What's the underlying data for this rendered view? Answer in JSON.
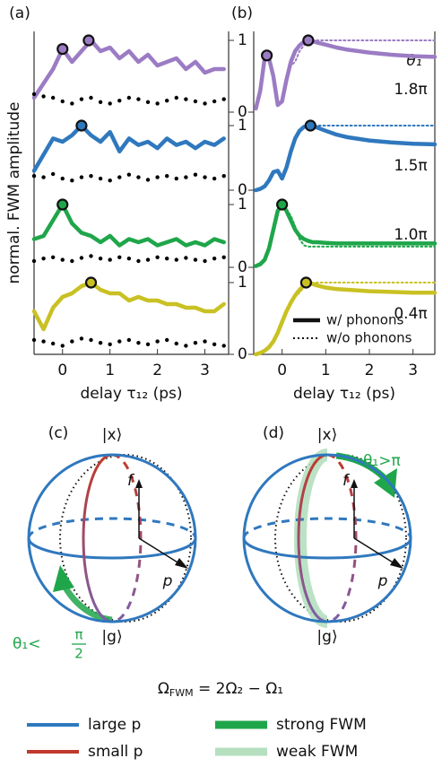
{
  "chart_data": [
    {
      "type": "line",
      "label": "(a)",
      "ylabel": "normal. FWM amplitude",
      "xlabel": "delay τ₁₂ (ps)",
      "xlim": [
        -0.6,
        3.5
      ],
      "xticks": [
        0,
        1,
        2,
        3
      ],
      "x": [
        -0.6,
        -0.4,
        -0.2,
        0,
        0.2,
        0.4,
        0.6,
        0.8,
        1.0,
        1.2,
        1.4,
        1.6,
        1.8,
        2.0,
        2.2,
        2.4,
        2.6,
        2.8,
        3.0,
        3.2,
        3.4
      ],
      "subplots": [
        {
          "ylim": [
            0,
            1
          ],
          "yticks": [
            0,
            1
          ],
          "series": [
            {
              "style": "solid",
              "color": "#9b7cc4",
              "values": [
                0.2,
                0.4,
                0.6,
                0.88,
                0.7,
                0.85,
                1.0,
                0.85,
                0.9,
                0.75,
                0.85,
                0.7,
                0.8,
                0.65,
                0.7,
                0.75,
                0.6,
                0.7,
                0.55,
                0.6,
                0.6
              ]
            },
            {
              "style": "dots",
              "color": "#000000",
              "values": [
                0.25,
                0.22,
                0.2,
                0.15,
                0.12,
                0.18,
                0.2,
                0.14,
                0.12,
                0.16,
                0.2,
                0.18,
                0.14,
                0.12,
                0.16,
                0.2,
                0.18,
                0.15,
                0.12,
                0.15,
                0.18
              ]
            }
          ],
          "markers": {
            "x": [
              0,
              0.55
            ],
            "values": [
              0.88,
              1.0
            ]
          }
        },
        {
          "ylim": [
            0,
            1
          ],
          "yticks": [
            0,
            1
          ],
          "series": [
            {
              "style": "solid",
              "color": "#2f78be",
              "values": [
                0.3,
                0.55,
                0.8,
                0.75,
                0.85,
                1.0,
                0.85,
                0.75,
                0.9,
                0.6,
                0.8,
                0.7,
                0.75,
                0.65,
                0.8,
                0.7,
                0.75,
                0.65,
                0.75,
                0.7,
                0.8
              ]
            },
            {
              "style": "dots",
              "color": "#000000",
              "values": [
                0.22,
                0.2,
                0.25,
                0.18,
                0.15,
                0.2,
                0.22,
                0.18,
                0.15,
                0.2,
                0.24,
                0.2,
                0.16,
                0.2,
                0.22,
                0.18,
                0.2,
                0.24,
                0.2,
                0.18,
                0.22
              ]
            }
          ],
          "markers": {
            "x": [
              0.4
            ],
            "values": [
              1.0
            ]
          }
        },
        {
          "ylim": [
            0,
            1
          ],
          "yticks": [
            0,
            1
          ],
          "series": [
            {
              "style": "solid",
              "color": "#1fa64a",
              "values": [
                0.45,
                0.5,
                0.75,
                1.0,
                0.7,
                0.55,
                0.5,
                0.4,
                0.5,
                0.35,
                0.45,
                0.4,
                0.45,
                0.35,
                0.4,
                0.45,
                0.35,
                0.4,
                0.35,
                0.45,
                0.4
              ]
            },
            {
              "style": "dots",
              "color": "#000000",
              "values": [
                0.1,
                0.14,
                0.16,
                0.12,
                0.1,
                0.15,
                0.18,
                0.14,
                0.12,
                0.16,
                0.14,
                0.1,
                0.12,
                0.16,
                0.14,
                0.12,
                0.15,
                0.12,
                0.1,
                0.14,
                0.16
              ]
            }
          ],
          "markers": {
            "x": [
              0
            ],
            "values": [
              1.0
            ]
          }
        },
        {
          "ylim": [
            0,
            1
          ],
          "yticks": [
            0,
            1
          ],
          "series": [
            {
              "style": "solid",
              "color": "#c9c123",
              "values": [
                0.6,
                0.35,
                0.65,
                0.8,
                0.85,
                0.95,
                1.0,
                0.9,
                0.85,
                0.85,
                0.75,
                0.8,
                0.75,
                0.75,
                0.7,
                0.7,
                0.65,
                0.65,
                0.6,
                0.6,
                0.7
              ]
            },
            {
              "style": "dots",
              "color": "#000000",
              "values": [
                0.2,
                0.18,
                0.15,
                0.12,
                0.18,
                0.22,
                0.2,
                0.16,
                0.14,
                0.18,
                0.2,
                0.16,
                0.14,
                0.18,
                0.2,
                0.15,
                0.12,
                0.16,
                0.18,
                0.14,
                0.12
              ]
            }
          ],
          "markers": {
            "x": [
              0.6
            ],
            "values": [
              1.0
            ]
          }
        }
      ]
    },
    {
      "type": "line",
      "label": "(b)",
      "xlabel": "delay τ₁₂ (ps)",
      "xlim": [
        -0.65,
        3.5
      ],
      "xticks": [
        0,
        1,
        2,
        3
      ],
      "x": [
        -0.6,
        -0.5,
        -0.4,
        -0.3,
        -0.2,
        -0.1,
        0,
        0.1,
        0.2,
        0.3,
        0.4,
        0.5,
        0.6,
        0.7,
        0.8,
        1.0,
        1.25,
        1.5,
        2,
        2.5,
        3,
        3.5
      ],
      "annotation_header": "θ₁",
      "legend": [
        {
          "name": "w/ phonons",
          "style": "solid"
        },
        {
          "name": "w/o phonons",
          "style": "dotted"
        }
      ],
      "subplots": [
        {
          "ylim": [
            0,
            1
          ],
          "annotation": "1.8π",
          "series": [
            {
              "style": "solid",
              "color": "#9b7cc4",
              "values": [
                0.05,
                0.3,
                0.75,
                0.75,
                0.5,
                0.1,
                0.15,
                0.45,
                0.7,
                0.85,
                0.93,
                0.98,
                1.0,
                0.99,
                0.97,
                0.94,
                0.9,
                0.87,
                0.83,
                0.8,
                0.78,
                0.77
              ]
            },
            {
              "style": "dotted",
              "color": "#9b7cc4",
              "values": [
                0.05,
                0.3,
                0.75,
                0.75,
                0.5,
                0.1,
                0.15,
                0.45,
                0.65,
                0.7,
                0.85,
                0.93,
                0.97,
                0.99,
                1.0,
                1.0,
                1.0,
                1.0,
                1.0,
                1.0,
                1.0,
                1.0
              ]
            }
          ],
          "markers": {
            "x": [
              -0.35,
              0.6
            ],
            "values": [
              0.79,
              1.0
            ]
          }
        },
        {
          "ylim": [
            0,
            1
          ],
          "annotation": "1.5π",
          "series": [
            {
              "style": "solid",
              "color": "#2f78be",
              "values": [
                0.0,
                0.02,
                0.06,
                0.15,
                0.28,
                0.3,
                0.18,
                0.35,
                0.6,
                0.8,
                0.92,
                0.98,
                1.0,
                0.99,
                0.97,
                0.92,
                0.86,
                0.82,
                0.77,
                0.74,
                0.72,
                0.71
              ]
            },
            {
              "style": "dotted",
              "color": "#2f78be",
              "values": [
                0.0,
                0.02,
                0.06,
                0.15,
                0.28,
                0.3,
                0.18,
                0.35,
                0.6,
                0.82,
                0.93,
                0.98,
                1.0,
                1.0,
                1.0,
                1.0,
                1.0,
                1.0,
                1.0,
                1.0,
                1.0,
                1.0
              ]
            }
          ],
          "markers": {
            "x": [
              0.65
            ],
            "values": [
              1.0
            ]
          }
        },
        {
          "ylim": [
            0,
            1
          ],
          "annotation": "1.0π",
          "series": [
            {
              "style": "solid",
              "color": "#1fa64a",
              "values": [
                0.02,
                0.05,
                0.12,
                0.3,
                0.6,
                0.9,
                1.0,
                0.9,
                0.75,
                0.6,
                0.5,
                0.45,
                0.42,
                0.4,
                0.4,
                0.39,
                0.38,
                0.38,
                0.38,
                0.38,
                0.38,
                0.38
              ]
            },
            {
              "style": "dotted",
              "color": "#1fa64a",
              "values": [
                0.02,
                0.05,
                0.12,
                0.3,
                0.6,
                0.9,
                1.0,
                0.92,
                0.82,
                0.65,
                0.45,
                0.35,
                0.33,
                0.33,
                0.33,
                0.33,
                0.33,
                0.33,
                0.33,
                0.33,
                0.33,
                0.33
              ]
            }
          ],
          "markers": {
            "x": [
              0
            ],
            "values": [
              1.0
            ]
          }
        },
        {
          "ylim": [
            0,
            1
          ],
          "annotation": "0.4π",
          "series": [
            {
              "style": "solid",
              "color": "#c9c123",
              "values": [
                0.0,
                0.02,
                0.05,
                0.1,
                0.18,
                0.3,
                0.45,
                0.6,
                0.72,
                0.82,
                0.9,
                0.96,
                1.0,
                0.98,
                0.96,
                0.93,
                0.91,
                0.9,
                0.88,
                0.87,
                0.86,
                0.86
              ]
            },
            {
              "style": "dotted",
              "color": "#c9c123",
              "values": [
                0.0,
                0.02,
                0.05,
                0.1,
                0.18,
                0.3,
                0.45,
                0.6,
                0.72,
                0.8,
                0.86,
                0.93,
                0.98,
                1.0,
                1.0,
                1.0,
                1.0,
                1.0,
                1.0,
                1.0,
                1.0,
                1.0
              ]
            }
          ],
          "markers": {
            "x": [
              0.55
            ],
            "values": [
              1.0
            ]
          }
        }
      ]
    }
  ],
  "diagrams": {
    "panels": [
      {
        "label": "(c)",
        "top_state": "|x⟩",
        "bottom_state": "|g⟩",
        "axis_f": "f",
        "axis_p": "p",
        "angle_label": {
          "text": "θ₁<",
          "numerator": "π",
          "denominator": "2"
        }
      },
      {
        "label": "(d)",
        "top_state": "|x⟩",
        "bottom_state": "|g⟩",
        "axis_f": "f",
        "axis_p": "p",
        "angle_label": {
          "text": "θ₁>π"
        }
      }
    ],
    "formula": {
      "symbol": "Ω",
      "subscript": "FWM",
      "rest": " = 2Ω₂ − Ω₁"
    },
    "legend": [
      {
        "name": "large p",
        "color": "#2f78be"
      },
      {
        "name": "small p",
        "color": "#c0392b"
      },
      {
        "name": "strong FWM",
        "color": "#1fa64a"
      },
      {
        "name": "weak FWM",
        "color": "#b5dfbf"
      }
    ]
  }
}
